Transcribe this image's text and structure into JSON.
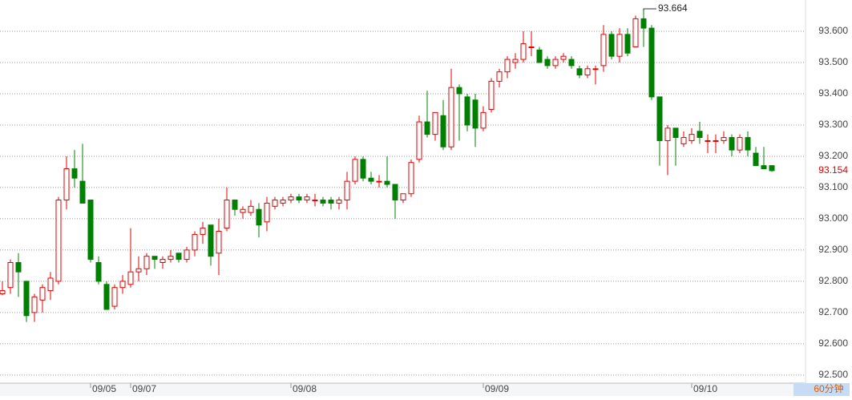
{
  "chart_data": {
    "type": "candlestick",
    "up_color": "#e60000",
    "down_color": "#008000",
    "grid": true,
    "ylim": [
      92.475,
      93.7
    ],
    "yticks": [
      {
        "value": 92.5,
        "label": "92.500"
      },
      {
        "value": 92.6,
        "label": "92.600"
      },
      {
        "value": 92.7,
        "label": "92.700"
      },
      {
        "value": 92.8,
        "label": "92.800"
      },
      {
        "value": 92.9,
        "label": "92.900"
      },
      {
        "value": 93.0,
        "label": "93.000"
      },
      {
        "value": 93.1,
        "label": "93.100"
      },
      {
        "value": 93.2,
        "label": "93.200"
      },
      {
        "value": 93.3,
        "label": "93.300"
      },
      {
        "value": 93.4,
        "label": "93.400"
      },
      {
        "value": 93.5,
        "label": "93.500"
      },
      {
        "value": 93.6,
        "label": "93.600"
      }
    ],
    "categories": [
      null,
      null,
      null,
      null,
      null,
      null,
      null,
      null,
      null,
      null,
      null,
      "09/05",
      null,
      null,
      null,
      null,
      "09/07",
      null,
      null,
      null,
      null,
      null,
      null,
      null,
      null,
      null,
      null,
      null,
      null,
      null,
      null,
      null,
      null,
      null,
      null,
      null,
      "09/08",
      null,
      null,
      null,
      null,
      null,
      null,
      null,
      null,
      null,
      null,
      null,
      null,
      null,
      null,
      null,
      null,
      null,
      null,
      null,
      null,
      null,
      null,
      null,
      "09/09",
      null,
      null,
      null,
      null,
      null,
      null,
      null,
      null,
      null,
      null,
      null,
      null,
      null,
      null,
      null,
      null,
      null,
      null,
      null,
      null,
      null,
      null,
      null,
      null,
      null,
      "09/10",
      null,
      null,
      null,
      null,
      null,
      null,
      null,
      null,
      null,
      null
    ],
    "open": [
      92.76,
      92.78,
      92.86,
      92.8,
      92.7,
      92.74,
      92.77,
      92.8,
      93.06,
      93.16,
      93.12,
      93.06,
      92.86,
      92.79,
      92.72,
      92.78,
      92.79,
      92.83,
      92.84,
      92.88,
      92.86,
      92.87,
      92.89,
      92.87,
      92.9,
      92.95,
      92.98,
      92.89,
      92.97,
      93.06,
      93.02,
      93.02,
      93.03,
      92.99,
      93.04,
      93.05,
      93.06,
      93.07,
      93.06,
      93.06,
      93.06,
      93.06,
      93.05,
      93.06,
      93.12,
      93.19,
      93.13,
      93.12,
      93.12,
      93.11,
      93.06,
      93.08,
      93.19,
      93.31,
      93.27,
      93.33,
      93.23,
      93.42,
      93.39,
      93.38,
      93.29,
      93.35,
      93.44,
      93.47,
      93.5,
      93.51,
      93.55,
      93.54,
      93.51,
      93.49,
      93.51,
      93.51,
      93.48,
      93.46,
      93.48,
      93.49,
      93.59,
      93.52,
      93.59,
      93.55,
      93.64,
      93.61,
      93.39,
      93.25,
      93.29,
      93.24,
      93.25,
      93.28,
      93.25,
      93.25,
      93.25,
      93.26,
      93.22,
      93.26,
      93.21,
      93.17,
      93.17
    ],
    "high": [
      92.8,
      92.87,
      92.89,
      92.8,
      92.76,
      92.79,
      92.83,
      93.07,
      93.2,
      93.22,
      93.24,
      93.06,
      92.88,
      92.8,
      92.79,
      92.82,
      92.97,
      92.88,
      92.89,
      92.88,
      92.88,
      92.9,
      92.89,
      92.91,
      92.96,
      92.99,
      92.98,
      93.0,
      93.1,
      93.06,
      93.04,
      93.06,
      93.05,
      93.07,
      93.07,
      93.07,
      93.08,
      93.08,
      93.08,
      93.08,
      93.07,
      93.07,
      93.07,
      93.15,
      93.2,
      93.2,
      93.15,
      93.14,
      93.2,
      93.11,
      93.08,
      93.19,
      93.33,
      93.41,
      93.34,
      93.38,
      93.48,
      93.43,
      93.4,
      93.4,
      93.36,
      93.45,
      93.48,
      93.52,
      93.53,
      93.6,
      93.6,
      93.55,
      93.52,
      93.52,
      93.53,
      93.52,
      93.49,
      93.49,
      93.49,
      93.62,
      93.6,
      93.61,
      93.61,
      93.65,
      93.664,
      93.62,
      93.39,
      93.3,
      93.29,
      93.28,
      93.29,
      93.31,
      93.27,
      93.27,
      93.28,
      93.27,
      93.27,
      93.28,
      93.23,
      93.23,
      93.17
    ],
    "low": [
      92.755,
      92.76,
      92.75,
      92.67,
      92.67,
      92.7,
      92.74,
      92.79,
      93.03,
      93.1,
      93.05,
      92.86,
      92.79,
      92.71,
      92.71,
      92.76,
      92.78,
      92.8,
      92.82,
      92.84,
      92.84,
      92.86,
      92.86,
      92.86,
      92.88,
      92.92,
      92.85,
      92.82,
      92.96,
      93.01,
      93.0,
      93.01,
      92.94,
      92.96,
      93.03,
      93.04,
      93.05,
      93.05,
      93.05,
      93.04,
      93.04,
      93.03,
      93.03,
      93.03,
      93.11,
      93.12,
      93.11,
      93.1,
      93.1,
      93.0,
      93.05,
      93.07,
      93.18,
      93.26,
      93.25,
      93.22,
      93.22,
      93.25,
      93.28,
      93.23,
      93.28,
      93.34,
      93.42,
      93.45,
      93.48,
      93.5,
      93.52,
      93.5,
      93.48,
      93.48,
      93.5,
      93.48,
      93.45,
      93.45,
      93.43,
      93.47,
      93.51,
      93.5,
      93.52,
      93.55,
      93.55,
      93.38,
      93.17,
      93.14,
      93.17,
      93.23,
      93.24,
      93.24,
      93.21,
      93.21,
      93.24,
      93.2,
      93.21,
      93.2,
      93.17,
      93.16,
      93.15
    ],
    "close": [
      92.77,
      92.86,
      92.83,
      92.69,
      92.75,
      92.78,
      92.81,
      93.06,
      93.16,
      93.13,
      93.05,
      92.87,
      92.8,
      92.71,
      92.78,
      92.8,
      92.83,
      92.84,
      92.88,
      92.87,
      92.87,
      92.88,
      92.87,
      92.9,
      92.95,
      92.97,
      92.88,
      92.96,
      93.06,
      93.03,
      93.03,
      93.04,
      92.98,
      93.05,
      93.06,
      93.06,
      93.07,
      93.06,
      93.07,
      93.06,
      93.05,
      93.05,
      93.06,
      93.12,
      93.19,
      93.13,
      93.12,
      93.12,
      93.11,
      93.06,
      93.08,
      93.18,
      93.31,
      93.27,
      93.34,
      93.23,
      93.42,
      93.4,
      93.3,
      93.29,
      93.34,
      93.44,
      93.47,
      93.51,
      93.51,
      93.56,
      93.55,
      93.5,
      93.49,
      93.51,
      93.52,
      93.49,
      93.46,
      93.48,
      93.48,
      93.59,
      93.52,
      93.59,
      93.53,
      93.64,
      93.61,
      93.39,
      93.25,
      93.29,
      93.26,
      93.26,
      93.27,
      93.26,
      93.25,
      93.25,
      93.26,
      93.22,
      93.26,
      93.22,
      93.17,
      93.16,
      93.154
    ],
    "interval": "60分钟"
  }
}
